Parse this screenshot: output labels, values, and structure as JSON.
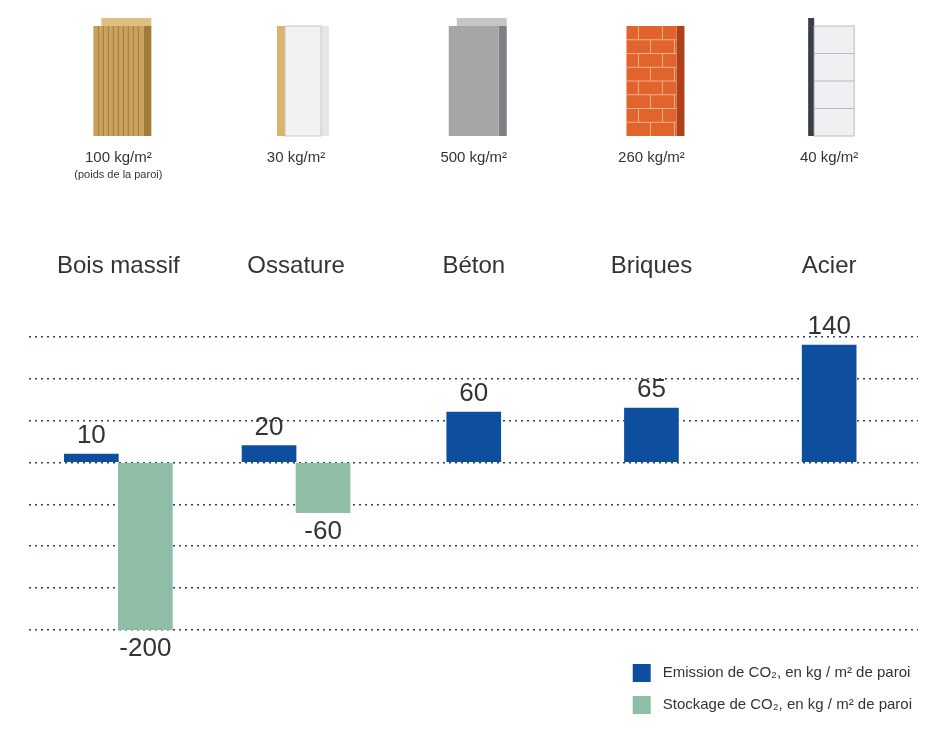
{
  "chart_data": {
    "type": "bar",
    "categories": [
      "Bois massif",
      "Ossature",
      "Béton",
      "Briques",
      "Acier"
    ],
    "series": [
      {
        "name": "Emission de CO₂, en kg / m² de paroi",
        "color": "#0d4f9e",
        "values": [
          10,
          20,
          60,
          65,
          140
        ]
      },
      {
        "name": "Stockage de CO₂, en kg / m² de paroi",
        "color": "#8fbea6",
        "values": [
          -200,
          -60,
          null,
          null,
          null
        ]
      }
    ],
    "ylim": [
      -200,
      150
    ],
    "yticks": [
      -200,
      -150,
      -100,
      -50,
      0,
      50,
      100,
      150
    ],
    "grid": true,
    "tick_labels": "x",
    "data_labels": true,
    "legend": "lower right",
    "wall_weights": [
      {
        "value": 100,
        "label": "100 kg/m²"
      },
      {
        "value": 30,
        "label": "30 kg/m²"
      },
      {
        "value": 500,
        "label": "500 kg/m²"
      },
      {
        "value": 260,
        "label": "260 kg/m²"
      },
      {
        "value": 40,
        "label": "40 kg/m²"
      }
    ],
    "wall_weight_note": "(poids de la paroi)"
  }
}
